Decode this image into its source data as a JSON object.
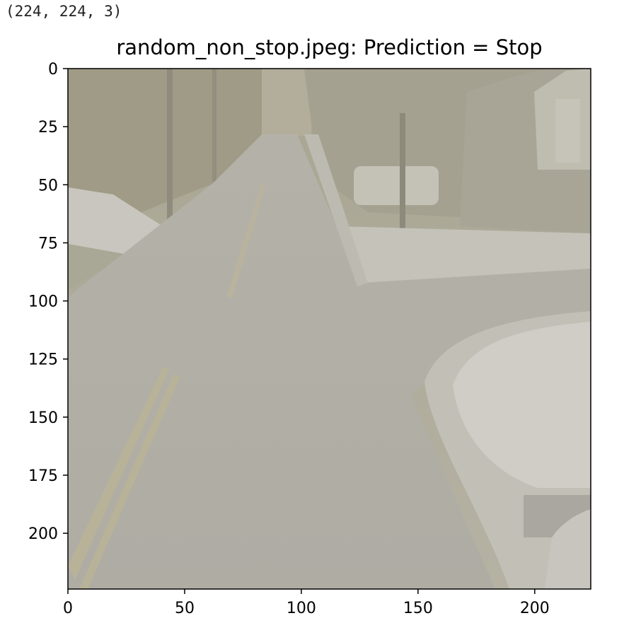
{
  "output": {
    "shape_text": "(224, 224, 3)"
  },
  "figure": {
    "title": "random_non_stop.jpeg: Prediction = Stop",
    "image_content": "washed-out photo of a residential road with a T-intersection, snowy curbs and trees"
  },
  "chart_data": {
    "type": "image",
    "title": "random_non_stop.jpeg: Prediction = Stop",
    "xlabel": "",
    "ylabel": "",
    "xlim": [
      0,
      224
    ],
    "ylim": [
      224,
      0
    ],
    "xticks": [
      0,
      50,
      100,
      150,
      200
    ],
    "yticks": [
      0,
      25,
      50,
      75,
      100,
      125,
      150,
      175,
      200
    ],
    "grid": false
  }
}
